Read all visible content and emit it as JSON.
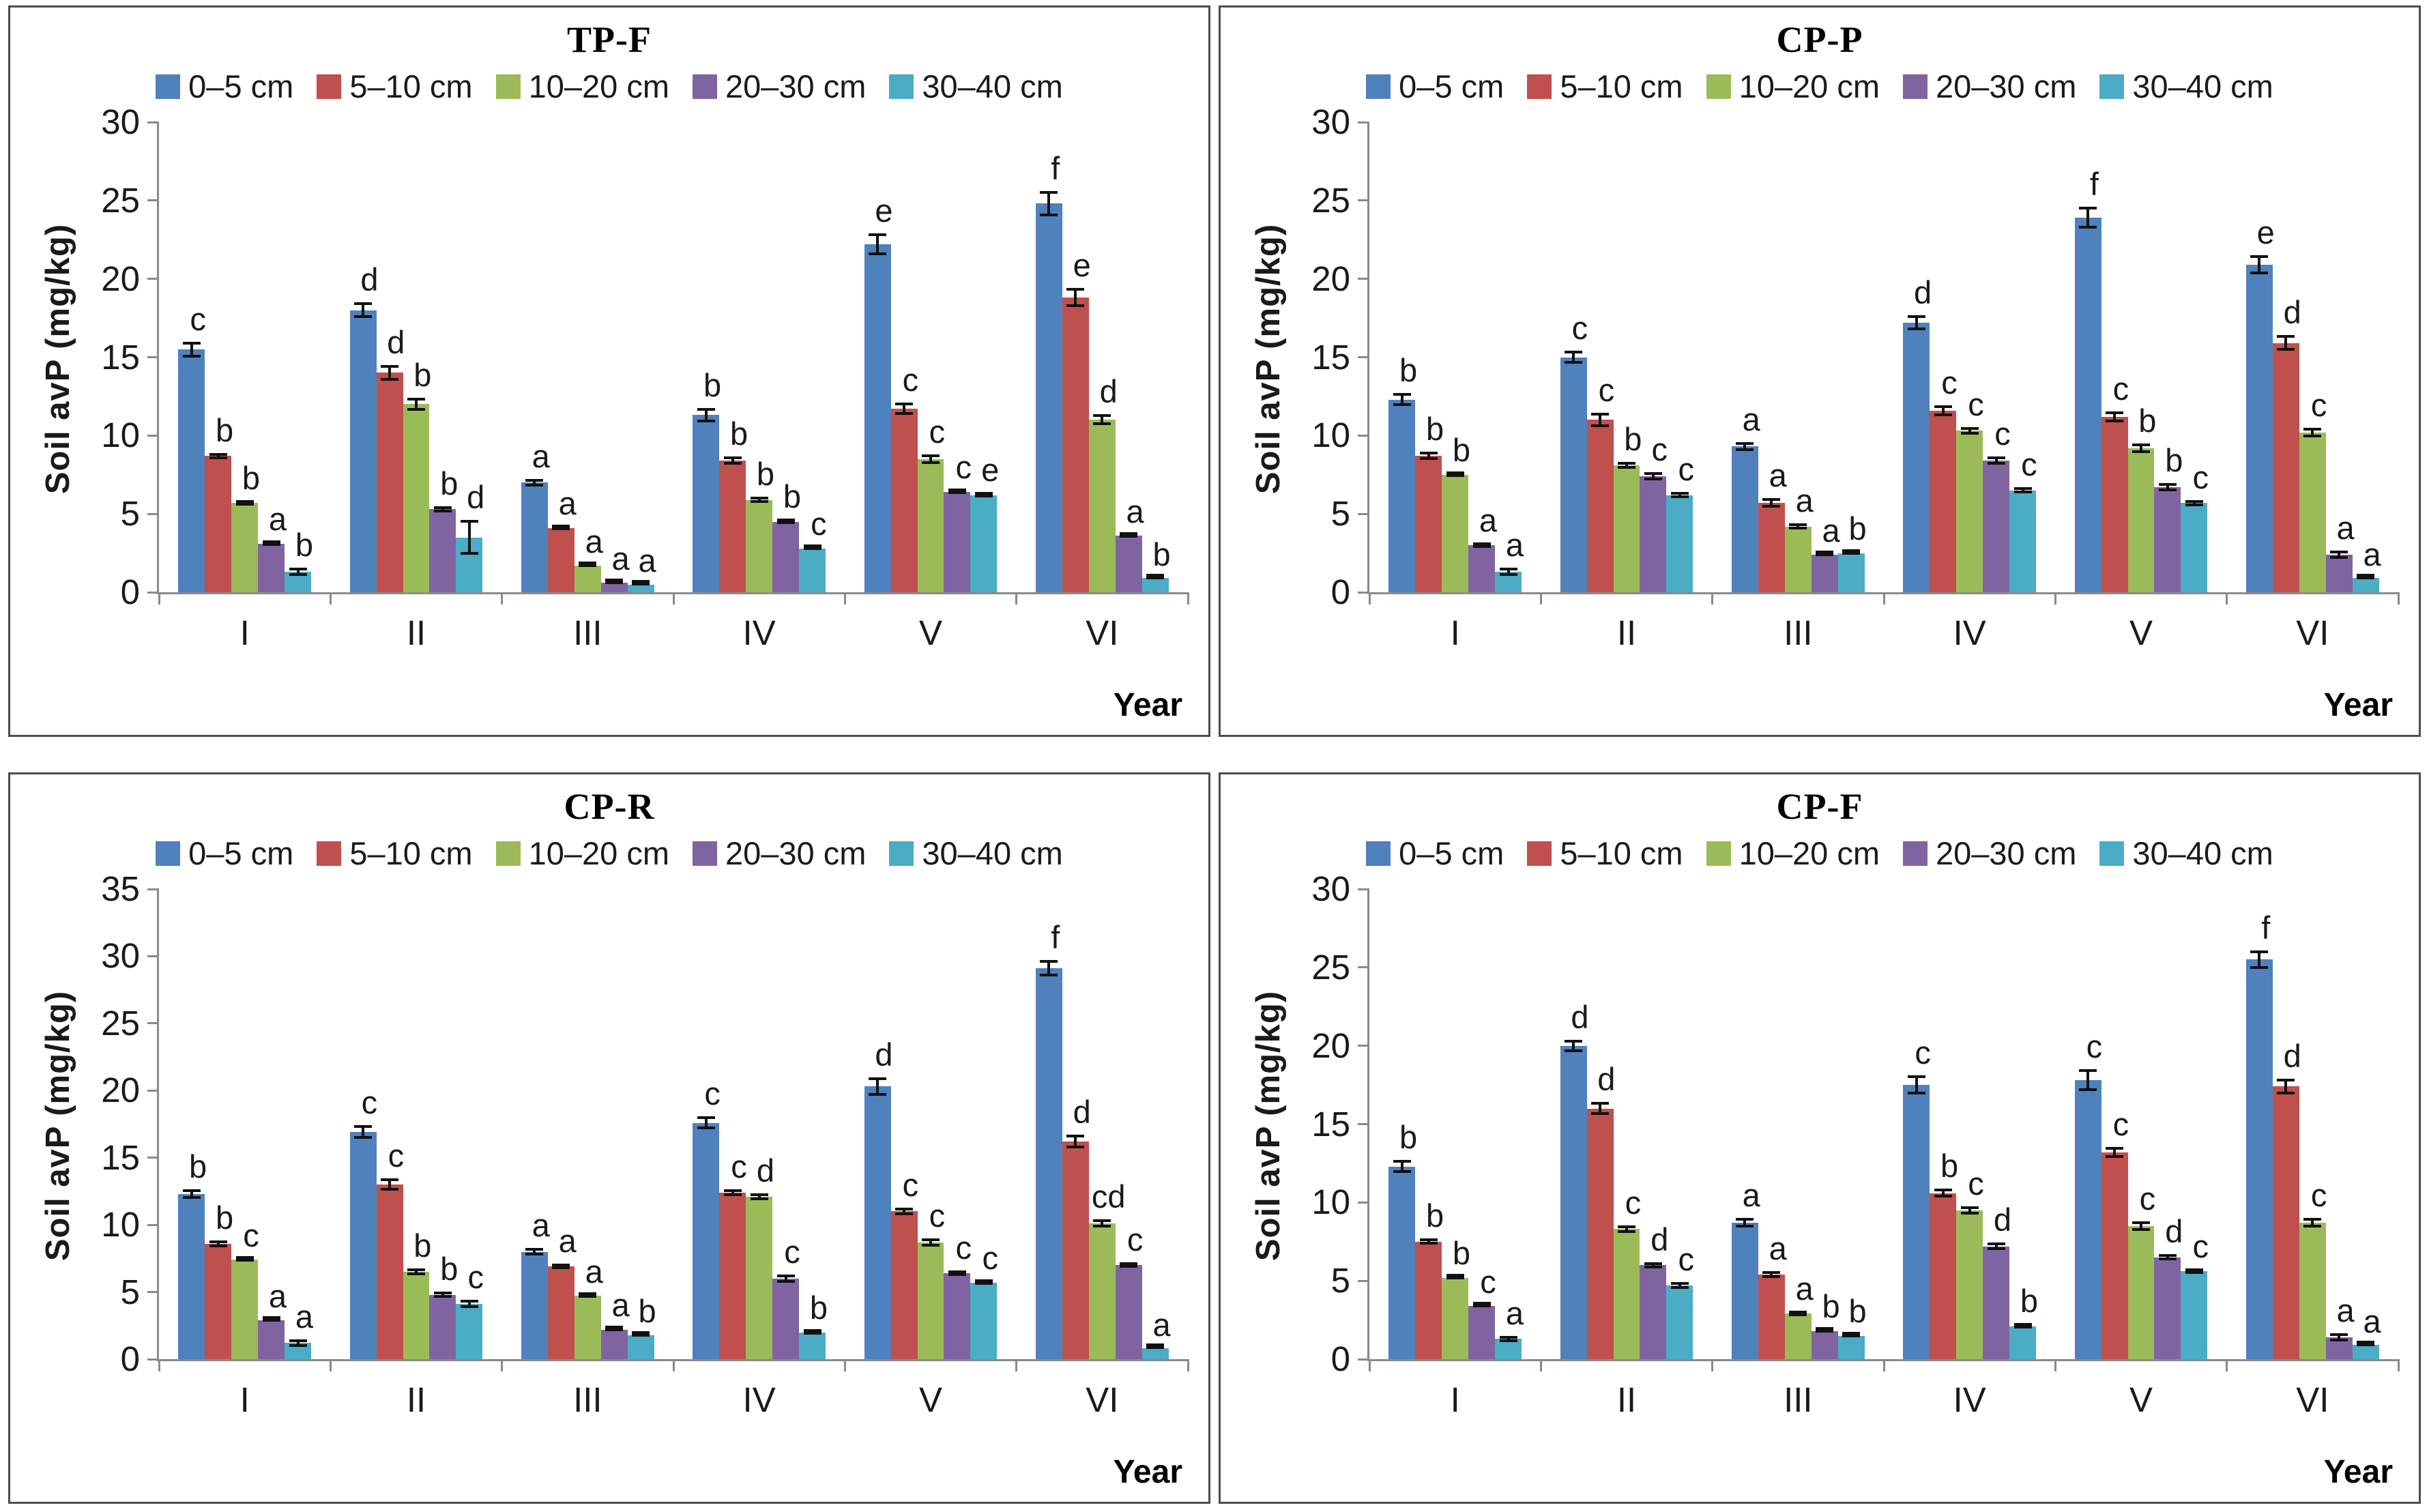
{
  "figure": {
    "xlabel": "Year",
    "ylabel": "Soil avP (mg/kg)"
  },
  "chart_data": [
    {
      "type": "bar",
      "title": "TP-F",
      "xlabel": "Year",
      "ylabel": "Soil avP (mg/kg)",
      "categories": [
        "I",
        "II",
        "III",
        "IV",
        "V",
        "VI"
      ],
      "ylim": [
        0,
        30
      ],
      "ytick_step": 5,
      "grid": false,
      "legend_position": "top",
      "error_bars": true,
      "series": [
        {
          "name": "0–5 cm",
          "color": "#4f81bd",
          "values": [
            15.5,
            18.0,
            7.0,
            11.3,
            22.2,
            24.8
          ],
          "errors": [
            0.5,
            0.5,
            0.25,
            0.45,
            0.7,
            0.8
          ],
          "letters": [
            "c",
            "d",
            "a",
            "b",
            "e",
            "f"
          ]
        },
        {
          "name": "5–10 cm",
          "color": "#c0504d",
          "values": [
            8.7,
            14.0,
            4.1,
            8.4,
            11.7,
            18.8
          ],
          "errors": [
            0.2,
            0.5,
            0.12,
            0.25,
            0.4,
            0.6
          ],
          "letters": [
            "b",
            "d",
            "a",
            "b",
            "c",
            "e"
          ]
        },
        {
          "name": "10–20 cm",
          "color": "#9bbb59",
          "values": [
            5.7,
            12.0,
            1.7,
            5.9,
            8.5,
            11.0
          ],
          "errors": [
            0.15,
            0.4,
            0.1,
            0.2,
            0.3,
            0.35
          ],
          "letters": [
            "b",
            "b",
            "a",
            "b",
            "c",
            "d"
          ]
        },
        {
          "name": "20–30 cm",
          "color": "#8064a2",
          "values": [
            3.1,
            5.3,
            0.6,
            4.5,
            6.4,
            3.6
          ],
          "errors": [
            0.12,
            0.2,
            0.08,
            0.15,
            0.15,
            0.1
          ],
          "letters": [
            "a",
            "b",
            "a",
            "b",
            "c",
            "a"
          ]
        },
        {
          "name": "30–40 cm",
          "color": "#4bacc6",
          "values": [
            1.3,
            3.5,
            0.5,
            2.8,
            6.2,
            0.9
          ],
          "errors": [
            0.25,
            1.1,
            0.08,
            0.12,
            0.15,
            0.06
          ],
          "letters": [
            "b",
            "d",
            "a",
            "c",
            "e",
            "b"
          ]
        }
      ]
    },
    {
      "type": "bar",
      "title": "CP-P",
      "xlabel": "Year",
      "ylabel": "Soil avP (mg/kg)",
      "categories": [
        "I",
        "II",
        "III",
        "IV",
        "V",
        "VI"
      ],
      "ylim": [
        0,
        30
      ],
      "ytick_step": 5,
      "grid": false,
      "legend_position": "top",
      "error_bars": true,
      "series": [
        {
          "name": "0–5 cm",
          "color": "#4f81bd",
          "values": [
            12.3,
            15.0,
            9.3,
            17.2,
            23.9,
            20.9
          ],
          "errors": [
            0.4,
            0.4,
            0.3,
            0.5,
            0.7,
            0.6
          ],
          "letters": [
            "b",
            "c",
            "a",
            "d",
            "f",
            "e"
          ]
        },
        {
          "name": "5–10 cm",
          "color": "#c0504d",
          "values": [
            8.7,
            11.0,
            5.7,
            11.6,
            11.2,
            15.9
          ],
          "errors": [
            0.25,
            0.45,
            0.3,
            0.35,
            0.35,
            0.5
          ],
          "letters": [
            "b",
            "c",
            "a",
            "c",
            "c",
            "d"
          ]
        },
        {
          "name": "10–20 cm",
          "color": "#9bbb59",
          "values": [
            7.5,
            8.1,
            4.2,
            10.3,
            9.2,
            10.2
          ],
          "errors": [
            0.12,
            0.2,
            0.2,
            0.25,
            0.3,
            0.3
          ],
          "letters": [
            "b",
            "b",
            "a",
            "c",
            "b",
            "c"
          ]
        },
        {
          "name": "20–30 cm",
          "color": "#8064a2",
          "values": [
            3.0,
            7.4,
            2.4,
            8.4,
            6.7,
            2.4
          ],
          "errors": [
            0.15,
            0.25,
            0.1,
            0.25,
            0.25,
            0.25
          ],
          "letters": [
            "a",
            "c",
            "a",
            "c",
            "b",
            "a"
          ]
        },
        {
          "name": "30–40 cm",
          "color": "#4bacc6",
          "values": [
            1.3,
            6.2,
            2.5,
            6.5,
            5.7,
            0.9
          ],
          "errors": [
            0.25,
            0.2,
            0.12,
            0.2,
            0.2,
            0.08
          ],
          "letters": [
            "a",
            "c",
            "b",
            "c",
            "c",
            "a"
          ]
        }
      ]
    },
    {
      "type": "bar",
      "title": "CP-R",
      "xlabel": "Year",
      "ylabel": "Soil avP (mg/kg)",
      "categories": [
        "I",
        "II",
        "III",
        "IV",
        "V",
        "VI"
      ],
      "ylim": [
        0,
        35
      ],
      "ytick_step": 5,
      "grid": false,
      "legend_position": "top",
      "error_bars": true,
      "series": [
        {
          "name": "0–5 cm",
          "color": "#4f81bd",
          "values": [
            12.3,
            16.9,
            8.0,
            17.6,
            20.3,
            29.1
          ],
          "errors": [
            0.35,
            0.5,
            0.3,
            0.5,
            0.7,
            0.6
          ],
          "letters": [
            "b",
            "c",
            "a",
            "c",
            "d",
            "f"
          ]
        },
        {
          "name": "5–10 cm",
          "color": "#c0504d",
          "values": [
            8.6,
            13.0,
            6.9,
            12.4,
            11.0,
            16.2
          ],
          "errors": [
            0.25,
            0.45,
            0.2,
            0.25,
            0.3,
            0.5
          ],
          "letters": [
            "b",
            "c",
            "a",
            "c",
            "c",
            "d"
          ]
        },
        {
          "name": "10–20 cm",
          "color": "#9bbb59",
          "values": [
            7.4,
            6.5,
            4.7,
            12.1,
            8.7,
            10.1
          ],
          "errors": [
            0.12,
            0.25,
            0.15,
            0.25,
            0.3,
            0.3
          ],
          "letters": [
            "c",
            "b",
            "a",
            "d",
            "c",
            "cd"
          ]
        },
        {
          "name": "20–30 cm",
          "color": "#8064a2",
          "values": [
            2.9,
            4.8,
            2.2,
            6.0,
            6.4,
            7.0
          ],
          "errors": [
            0.1,
            0.25,
            0.12,
            0.3,
            0.2,
            0.2
          ],
          "letters": [
            "a",
            "b",
            "a",
            "c",
            "c",
            "c"
          ]
        },
        {
          "name": "30–40 cm",
          "color": "#4bacc6",
          "values": [
            1.2,
            4.1,
            1.8,
            2.0,
            5.7,
            0.8
          ],
          "errors": [
            0.3,
            0.3,
            0.1,
            0.15,
            0.15,
            0.06
          ],
          "letters": [
            "a",
            "c",
            "b",
            "b",
            "c",
            "a"
          ]
        }
      ]
    },
    {
      "type": "bar",
      "title": "CP-F",
      "xlabel": "Year",
      "ylabel": "Soil avP (mg/kg)",
      "categories": [
        "I",
        "II",
        "III",
        "IV",
        "V",
        "VI"
      ],
      "ylim": [
        0,
        30
      ],
      "ytick_step": 5,
      "grid": false,
      "legend_position": "top",
      "error_bars": true,
      "series": [
        {
          "name": "0–5 cm",
          "color": "#4f81bd",
          "values": [
            12.3,
            20.0,
            8.7,
            17.5,
            17.8,
            25.5
          ],
          "errors": [
            0.4,
            0.4,
            0.3,
            0.6,
            0.7,
            0.6
          ],
          "letters": [
            "b",
            "d",
            "a",
            "c",
            "c",
            "f"
          ]
        },
        {
          "name": "5–10 cm",
          "color": "#c0504d",
          "values": [
            7.5,
            16.0,
            5.4,
            10.6,
            13.2,
            17.4
          ],
          "errors": [
            0.2,
            0.4,
            0.2,
            0.3,
            0.35,
            0.5
          ],
          "letters": [
            "b",
            "d",
            "a",
            "b",
            "c",
            "d"
          ]
        },
        {
          "name": "10–20 cm",
          "color": "#9bbb59",
          "values": [
            5.2,
            8.3,
            2.9,
            9.5,
            8.5,
            8.7
          ],
          "errors": [
            0.12,
            0.25,
            0.15,
            0.25,
            0.3,
            0.3
          ],
          "letters": [
            "b",
            "c",
            "a",
            "c",
            "c",
            "c"
          ]
        },
        {
          "name": "20–30 cm",
          "color": "#8064a2",
          "values": [
            3.4,
            6.0,
            1.8,
            7.2,
            6.5,
            1.4
          ],
          "errors": [
            0.1,
            0.2,
            0.1,
            0.25,
            0.2,
            0.25
          ],
          "letters": [
            "c",
            "d",
            "b",
            "d",
            "d",
            "a"
          ]
        },
        {
          "name": "30–40 cm",
          "color": "#4bacc6",
          "values": [
            1.3,
            4.7,
            1.5,
            2.1,
            5.6,
            0.9
          ],
          "errors": [
            0.2,
            0.2,
            0.1,
            0.15,
            0.15,
            0.08
          ],
          "letters": [
            "a",
            "c",
            "b",
            "b",
            "c",
            "a"
          ]
        }
      ]
    }
  ]
}
